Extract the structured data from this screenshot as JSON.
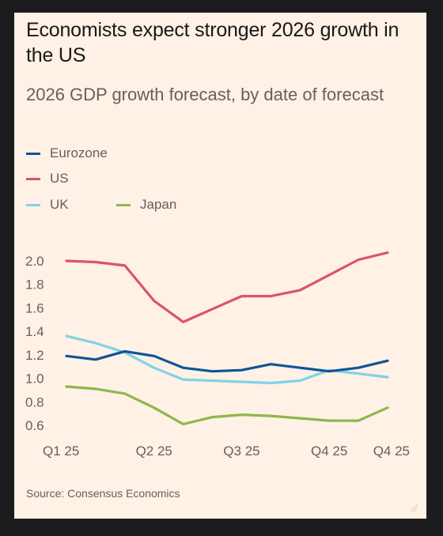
{
  "title": "Economists expect stronger 2026 growth in the US",
  "subtitle": "2026 GDP growth forecast, by date of forecast",
  "source": "Source: Consensus Economics",
  "colors": {
    "background": "#fff1e5",
    "frame": "#1c1c1e",
    "eurozone": "#0f5499",
    "us": "#d9546a",
    "uk": "#7fd3e6",
    "japan": "#8db84a"
  },
  "chart_data": {
    "type": "line",
    "title": "Economists expect stronger 2026 growth in the US",
    "subtitle": "2026 GDP growth forecast, by date of forecast",
    "x": [
      0,
      1,
      2,
      3,
      4,
      5,
      6,
      7,
      8,
      9,
      10,
      11
    ],
    "x_ticks": [
      {
        "x": 0,
        "label": "Q1 25"
      },
      {
        "x": 3,
        "label": "Q2 25"
      },
      {
        "x": 6,
        "label": "Q3 25"
      },
      {
        "x": 9,
        "label": "Q4 25"
      },
      {
        "x": 11,
        "label": "Q4 25"
      }
    ],
    "xlim": [
      0,
      11
    ],
    "ylim": [
      0.6,
      2.0
    ],
    "yticks": [
      2.0,
      1.8,
      1.6,
      1.4,
      1.2,
      1.0,
      0.8,
      0.6
    ],
    "ytick_labels": [
      "2.0",
      "1.8",
      "1.6",
      "1.4",
      "1.2",
      "1.0",
      "0.8",
      "0.6"
    ],
    "grid": false,
    "legend_position": "top-left",
    "series": [
      {
        "name": "Eurozone",
        "color": "#0f5499",
        "values": [
          1.19,
          1.16,
          1.23,
          1.19,
          1.09,
          1.06,
          1.07,
          1.12,
          1.09,
          1.06,
          1.09,
          1.15
        ]
      },
      {
        "name": "US",
        "color": "#d9546a",
        "values": [
          2.0,
          1.99,
          1.96,
          1.66,
          1.48,
          1.59,
          1.7,
          1.7,
          1.75,
          1.88,
          2.01,
          2.07
        ]
      },
      {
        "name": "UK",
        "color": "#7fd3e6",
        "values": [
          1.36,
          1.3,
          1.22,
          1.09,
          0.99,
          0.98,
          0.97,
          0.96,
          0.98,
          1.07,
          1.04,
          1.01
        ]
      },
      {
        "name": "Japan",
        "color": "#8db84a",
        "values": [
          0.93,
          0.91,
          0.87,
          0.75,
          0.61,
          0.67,
          0.69,
          0.68,
          0.66,
          0.64,
          0.64,
          0.75
        ]
      }
    ]
  }
}
